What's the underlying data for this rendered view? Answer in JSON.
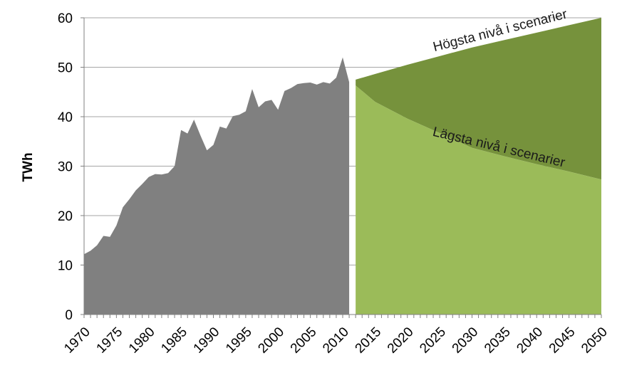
{
  "chart_data": {
    "type": "area",
    "ylabel": "TWh",
    "ylim": [
      0,
      60
    ],
    "yticks": [
      0,
      10,
      20,
      30,
      40,
      50,
      60
    ],
    "xlim": [
      1970,
      2050
    ],
    "xticks": [
      "1970",
      "1975",
      "1980",
      "1985",
      "1990",
      "1995",
      "2000",
      "2005",
      "2010",
      "2015",
      "2020",
      "2025",
      "2030",
      "2035",
      "2040",
      "2045",
      "2050"
    ],
    "grid": "horizontal",
    "colors": {
      "historical": "#808080",
      "high_band": "#76923c",
      "low_band": "#9bbb59",
      "grid": "#a6a6a6",
      "axis": "#808080"
    },
    "series": [
      {
        "x": [
          1970,
          1971,
          1972,
          1973,
          1974,
          1975,
          1976,
          1977,
          1978,
          1979,
          1980,
          1981,
          1982,
          1983,
          1984,
          1985,
          1986,
          1987,
          1988,
          1989,
          1990,
          1991,
          1992,
          1993,
          1994,
          1995,
          1996,
          1997,
          1998,
          1999,
          2000,
          2001,
          2002,
          2003,
          2004,
          2005,
          2006,
          2007,
          2008,
          2009,
          2010,
          2011
        ],
        "values": [
          12.2,
          12.9,
          14.0,
          15.9,
          15.7,
          18.0,
          21.7,
          23.3,
          25.1,
          26.4,
          27.8,
          28.4,
          28.3,
          28.6,
          30.0,
          37.3,
          36.6,
          39.4,
          36.2,
          33.2,
          34.3,
          38.0,
          37.6,
          40.1,
          40.4,
          41.1,
          45.6,
          41.9,
          43.1,
          43.4,
          41.4,
          45.2,
          45.8,
          46.6,
          46.8,
          46.9,
          46.5,
          47.0,
          46.7,
          47.9,
          52.0,
          47.0
        ]
      },
      {
        "x": [
          2012,
          2020,
          2030,
          2040,
          2050
        ],
        "values": [
          47.5,
          50.5,
          54.0,
          57.0,
          60.0
        ]
      },
      {
        "x": [
          2012,
          2015,
          2020,
          2025,
          2030,
          2035,
          2040,
          2045,
          2050
        ],
        "values": [
          46.3,
          43.0,
          39.6,
          36.7,
          33.7,
          32.0,
          30.4,
          28.9,
          27.3
        ]
      }
    ],
    "annotations": [
      {
        "text": "Högsta nivå i scenarier",
        "x": 2034.5,
        "y": 56.6
      },
      {
        "text": "Lägsta nivå i scenarier",
        "x": 2034.0,
        "y": 33.0
      }
    ]
  }
}
